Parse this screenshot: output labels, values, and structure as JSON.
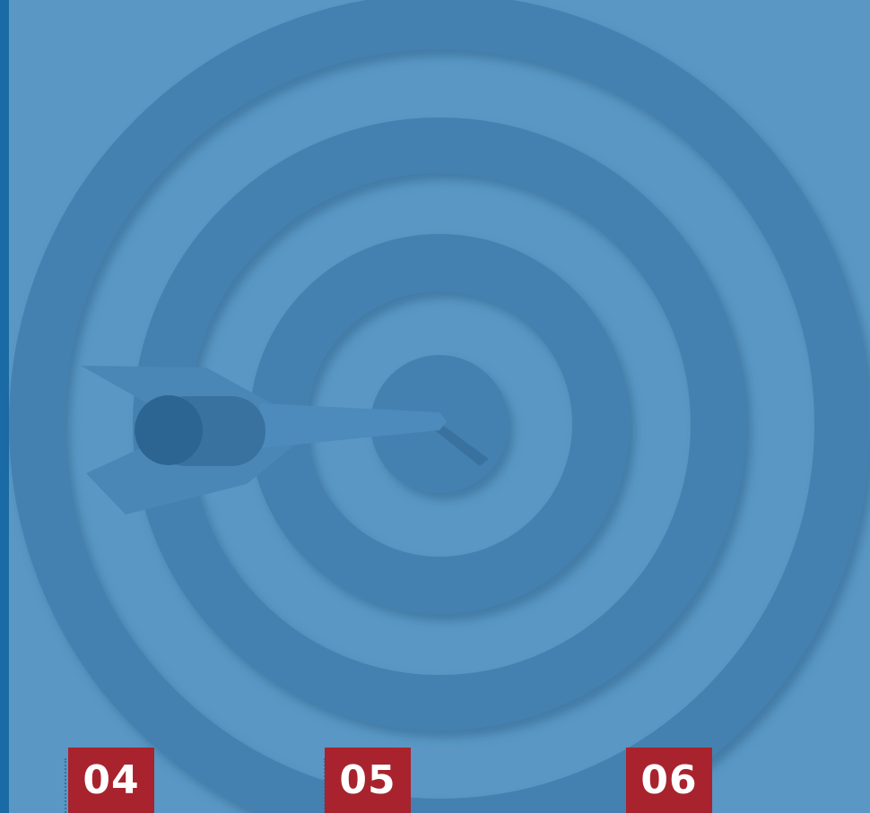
{
  "steps": [
    {
      "number": "04"
    },
    {
      "number": "05"
    },
    {
      "number": "06"
    }
  ]
}
